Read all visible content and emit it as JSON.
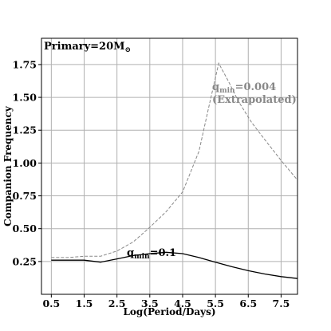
{
  "chart_data": {
    "type": "line",
    "xlabel": "Log(Period/Days)",
    "ylabel": "Companion Frequency",
    "xlim": [
      0.2,
      8.0
    ],
    "ylim": [
      0.0,
      1.95
    ],
    "xticks": [
      0.5,
      1.5,
      2.5,
      3.5,
      4.5,
      5.5,
      6.5,
      7.5
    ],
    "xtick_labels": [
      "0.5",
      "1.5",
      "2.5",
      "3.5",
      "4.5",
      "5.5",
      "6.5",
      "7.5"
    ],
    "yticks": [
      0.25,
      0.5,
      0.75,
      1.0,
      1.25,
      1.5,
      1.75
    ],
    "ytick_labels": [
      "0.25",
      "0.50",
      "0.75",
      "1.00",
      "1.25",
      "1.50",
      "1.75"
    ],
    "grid": true,
    "series": [
      {
        "label": "qmin=0.004",
        "color": "#888888",
        "linestyle": "dashed",
        "x": [
          0.5,
          1.0,
          1.5,
          2.0,
          2.5,
          3.0,
          3.5,
          4.0,
          4.5,
          5.0,
          5.3,
          5.6,
          5.9,
          6.2,
          6.6,
          7.0,
          7.5,
          8.0
        ],
        "y": [
          0.28,
          0.28,
          0.29,
          0.29,
          0.33,
          0.4,
          0.51,
          0.63,
          0.78,
          1.09,
          1.43,
          1.76,
          1.62,
          1.47,
          1.31,
          1.18,
          1.02,
          0.87
        ]
      },
      {
        "label": "qmin=0.1",
        "color": "#000000",
        "linestyle": "solid",
        "x": [
          0.5,
          1.0,
          1.5,
          2.0,
          2.5,
          3.0,
          3.5,
          4.0,
          4.5,
          5.0,
          5.5,
          6.0,
          6.5,
          7.0,
          7.5,
          8.0
        ],
        "y": [
          0.26,
          0.26,
          0.26,
          0.245,
          0.27,
          0.295,
          0.31,
          0.32,
          0.31,
          0.28,
          0.245,
          0.21,
          0.18,
          0.155,
          0.135,
          0.12
        ]
      }
    ],
    "annotations": [
      {
        "text_main": "q",
        "text_sub": "min",
        "text_rest": "=0.004",
        "line2": "(Extrapolated)",
        "color": "#888888"
      },
      {
        "text_main": "q",
        "text_sub": "min",
        "text_rest": "=0.1",
        "color": "#000000"
      },
      {
        "text": "Primary=20M",
        "symbol": "⊙",
        "color": "#000000"
      }
    ]
  }
}
